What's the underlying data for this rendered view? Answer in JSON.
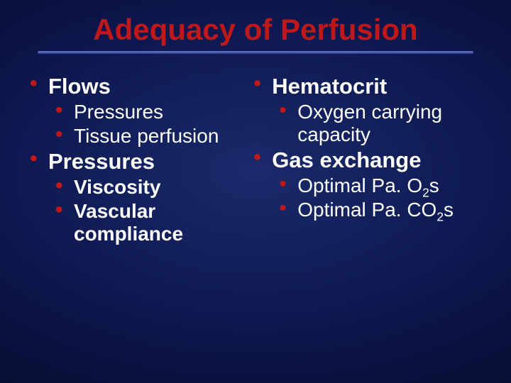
{
  "title": {
    "text": "Adequacy of Perfusion",
    "color": "#c01818",
    "fontsize": 42
  },
  "divider_color_top": "#6b7bc7",
  "divider_color_bottom": "#2a3a8a",
  "bullet_color": "#c01818",
  "body_fontsize_l1": 31,
  "body_fontsize_l2": 28,
  "left": [
    {
      "level": 1,
      "text": "Flows",
      "bold": true
    },
    {
      "level": 2,
      "text": "Pressures",
      "bold": false
    },
    {
      "level": 2,
      "text": "Tissue perfusion",
      "bold": false
    },
    {
      "level": 1,
      "text": "Pressures",
      "bold": true
    },
    {
      "level": 2,
      "text": "Viscosity",
      "bold": true
    },
    {
      "level": 2,
      "text": "Vascular compliance",
      "bold": true
    }
  ],
  "right": [
    {
      "level": 1,
      "text": "Hematocrit",
      "bold": true
    },
    {
      "level": 2,
      "text": "Oxygen carrying capacity",
      "bold": false
    },
    {
      "level": 1,
      "text": "Gas exchange",
      "bold": true
    },
    {
      "level": 2,
      "html": "Optimal Pa. O<sub>2</sub>s",
      "bold": false
    },
    {
      "level": 2,
      "html": "Optimal Pa. CO<sub>2</sub>s",
      "bold": false
    }
  ]
}
